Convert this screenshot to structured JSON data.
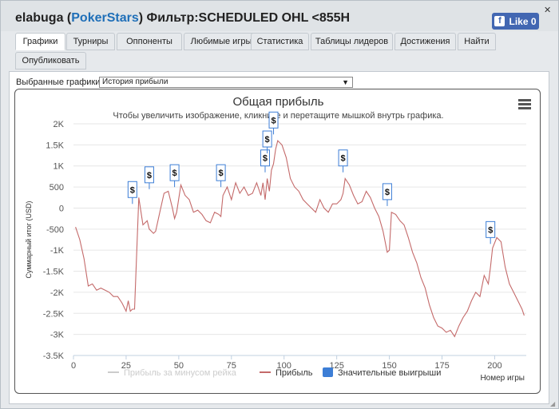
{
  "header": {
    "user": "elabuga",
    "site": "PokerStars",
    "filter": "Фильтр:SCHEDULED OHL <855H",
    "like_label": "Like 0",
    "close": "✕"
  },
  "tabs": [
    {
      "label": "Графики",
      "active": true
    },
    {
      "label": "Турниры"
    },
    {
      "label": "Оппоненты"
    },
    {
      "label": "Любимые игры"
    },
    {
      "label": "Статистика"
    },
    {
      "label": "Таблицы лидеров"
    },
    {
      "label": "Достижения"
    },
    {
      "label": "Найти"
    },
    {
      "label": "Опубликовать"
    }
  ],
  "graph_select": {
    "label": "Выбранные графики:",
    "value": "История прибыли"
  },
  "chart_data": {
    "type": "line",
    "title": "Общая прибыль",
    "subtitle": "Чтобы увеличить изображение, кликните и перетащите мышкой внутрь графика.",
    "xlabel": "Номер игры",
    "ylabel": "Суммарный итог (USD)",
    "xlim": [
      0,
      215
    ],
    "ylim": [
      -3500,
      2000
    ],
    "x_ticks": [
      0,
      25,
      50,
      75,
      100,
      125,
      150,
      175,
      200
    ],
    "y_ticks": [
      2000,
      1500,
      1000,
      500,
      0,
      -500,
      -1000,
      -1500,
      -2000,
      -2500,
      -3000,
      -3500
    ],
    "y_tick_labels": [
      "2K",
      "1.5K",
      "1K",
      "500",
      "0",
      "-500",
      "-1K",
      "-1.5K",
      "-2K",
      "-2.5K",
      "-3K",
      "-3.5K"
    ],
    "legend": [
      "Прибыль за минусом рейка",
      "Прибыль",
      "Значительные выигрыши"
    ],
    "series": [
      {
        "name": "Прибыль",
        "color": "#c46a6a",
        "x": [
          1,
          3,
          5,
          7,
          9,
          11,
          13,
          15,
          17,
          19,
          21,
          23,
          25,
          26,
          27,
          28,
          29,
          31,
          33,
          35,
          36,
          37,
          38,
          39,
          41,
          43,
          45,
          47,
          48,
          49,
          51,
          53,
          55,
          57,
          59,
          61,
          63,
          65,
          67,
          69,
          70,
          71,
          73,
          75,
          77,
          79,
          81,
          83,
          85,
          87,
          89,
          90,
          91,
          92,
          93,
          94,
          95,
          96,
          97,
          99,
          101,
          103,
          105,
          107,
          109,
          111,
          113,
          115,
          117,
          119,
          121,
          123,
          125,
          127,
          128,
          129,
          131,
          133,
          135,
          137,
          139,
          141,
          143,
          145,
          147,
          148,
          149,
          150,
          151,
          153,
          155,
          157,
          159,
          161,
          163,
          165,
          167,
          169,
          171,
          173,
          175,
          177,
          179,
          181,
          183,
          185,
          187,
          189,
          191,
          193,
          195,
          197,
          198,
          199,
          201,
          203,
          205,
          207,
          209,
          211,
          213,
          214
        ],
        "y": [
          -450,
          -750,
          -1200,
          -1850,
          -1800,
          -1950,
          -1900,
          -1950,
          -2000,
          -2100,
          -2100,
          -2250,
          -2450,
          -2200,
          -2450,
          -2400,
          -2400,
          250,
          -400,
          -300,
          -500,
          -550,
          -600,
          -550,
          -100,
          350,
          400,
          0,
          -250,
          -100,
          550,
          300,
          200,
          -100,
          -50,
          -150,
          -300,
          -350,
          -100,
          -150,
          -200,
          300,
          500,
          200,
          600,
          350,
          500,
          300,
          350,
          600,
          300,
          600,
          200,
          700,
          400,
          900,
          1050,
          1400,
          1600,
          1500,
          1200,
          700,
          500,
          400,
          200,
          100,
          0,
          -100,
          200,
          0,
          -100,
          100,
          100,
          200,
          350,
          700,
          550,
          300,
          100,
          150,
          400,
          250,
          0,
          -200,
          -550,
          -800,
          -1050,
          -1000,
          -100,
          -150,
          -300,
          -400,
          -700,
          -1050,
          -1300,
          -1650,
          -1900,
          -2300,
          -2600,
          -2800,
          -2850,
          -2950,
          -2900,
          -3050,
          -2800,
          -2600,
          -2450,
          -2200,
          -2000,
          -2100,
          -1600,
          -1800,
          -1400,
          -950,
          -700,
          -800,
          -1400,
          -1800,
          -2000,
          -2200,
          -2400,
          -2550
        ]
      }
    ],
    "big_wins": [
      {
        "x": 28,
        "y": 250,
        "label": "$"
      },
      {
        "x": 36,
        "y": 600,
        "label": "$"
      },
      {
        "x": 48,
        "y": 650,
        "label": "$"
      },
      {
        "x": 70,
        "y": 650,
        "label": "$"
      },
      {
        "x": 91,
        "y": 1000,
        "label": "$"
      },
      {
        "x": 92,
        "y": 1450,
        "label": "$"
      },
      {
        "x": 95,
        "y": 1900,
        "label": "$"
      },
      {
        "x": 128,
        "y": 1000,
        "label": "$"
      },
      {
        "x": 149,
        "y": 200,
        "label": "$"
      },
      {
        "x": 198,
        "y": -700,
        "label": "$"
      }
    ],
    "colors": {
      "profit_line": "#c46a6a",
      "rake_line": "#cccccc",
      "big_win_marker": "#3d7ed6"
    }
  }
}
